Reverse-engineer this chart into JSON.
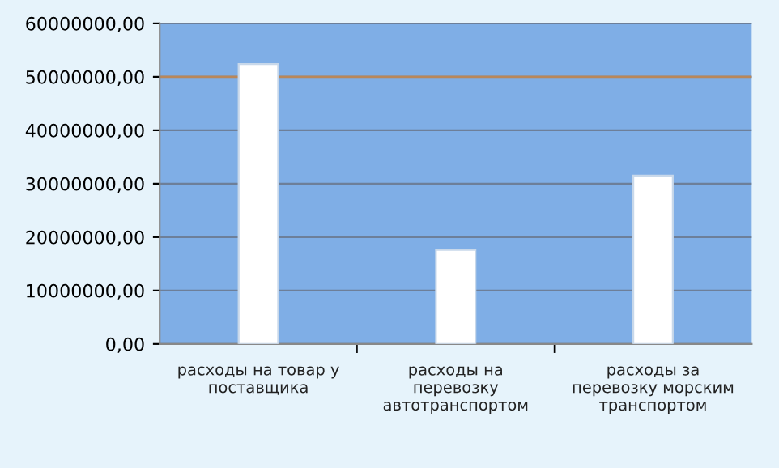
{
  "chart_data": {
    "type": "bar",
    "categories": [
      "расходы на товар у поставщика",
      "расходы на перевозку автотранспортом",
      "расходы за перевозку морским транспортом"
    ],
    "values": [
      52400000,
      17600000,
      31500000
    ],
    "color": "#ffffff",
    "ylim": [
      0,
      60000000
    ],
    "yticks": [
      {
        "value": 0,
        "label": "0,00"
      },
      {
        "value": 10000000,
        "label": "10000000,00"
      },
      {
        "value": 20000000,
        "label": "20000000,00"
      },
      {
        "value": 30000000,
        "label": "30000000,00"
      },
      {
        "value": 40000000,
        "label": "40000000,00"
      },
      {
        "value": 50000000,
        "label": "50000000,00"
      },
      {
        "value": 60000000,
        "label": "60000000,00"
      }
    ],
    "ref_lines": [
      {
        "axis": "y",
        "value": 50000000,
        "label": null,
        "color": "#b9875a"
      }
    ],
    "grid": "y"
  }
}
